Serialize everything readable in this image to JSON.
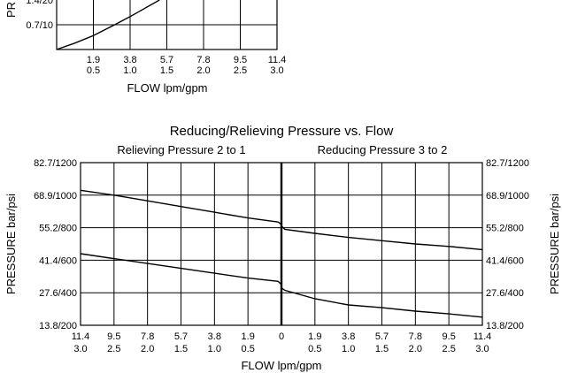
{
  "chart_data": [
    {
      "type": "line",
      "title": "",
      "xlabel": "FLOW lpm/gpm",
      "ylabel_visible": "PR",
      "x_ticks_lpm": [
        "1.9",
        "3.8",
        "5.7",
        "7.8",
        "9.5",
        "11.4"
      ],
      "x_ticks_gpm": [
        "0.5",
        "1.0",
        "1.5",
        "2.0",
        "2.5",
        "3.0"
      ],
      "y_ticks": [
        "0.7/10",
        "1.4/20"
      ],
      "xlim_gpm": [
        0,
        3.0
      ],
      "ylim_psi": [
        0,
        20
      ],
      "grid": true,
      "series": [
        {
          "x": [
            0,
            0.25,
            0.5,
            0.79,
            1.0,
            1.4
          ],
          "y": [
            0,
            2.6,
            5.6,
            10,
            13.3,
            20
          ]
        }
      ]
    },
    {
      "type": "line",
      "title": "Reducing/Relieving Pressure vs. Flow",
      "subtitles": [
        "Relieving Pressure 2 to 1",
        "Reducing Pressure 3 to 2"
      ],
      "xlabel": "FLOW  lpm/gpm",
      "ylabel": "PRESSURE  bar/psi",
      "x_ticks_lpm_left": [
        "11.4",
        "9.5",
        "7.8",
        "5.7",
        "3.8",
        "1.9",
        "0"
      ],
      "x_ticks_gpm_left": [
        "3.0",
        "2.5",
        "2.0",
        "1.5",
        "1.0",
        "0.5"
      ],
      "x_ticks_lpm_right": [
        "0",
        "1.9",
        "3.8",
        "5.7",
        "7.8",
        "9.5",
        "11.4"
      ],
      "x_ticks_gpm_right": [
        "0.5",
        "1.0",
        "1.5",
        "2.0",
        "2.5",
        "3.0"
      ],
      "y_ticks": [
        "82.7/1200",
        "68.9/1000",
        "55.2/800",
        "41.4/600",
        "27.6/400",
        "13.8/200"
      ],
      "ylim_psi": [
        200,
        1200
      ],
      "xlim_gpm_each_side": [
        0,
        3.0
      ],
      "grid": true,
      "relieving_series": [
        {
          "x": [
            3.0,
            2.5,
            2.0,
            1.5,
            1.0,
            0.5,
            0.05,
            0
          ],
          "y": [
            1030,
            1000,
            965,
            930,
            895,
            860,
            835,
            820
          ]
        },
        {
          "x": [
            3.0,
            2.5,
            2.0,
            1.5,
            1.0,
            0.5,
            0.05,
            0
          ],
          "y": [
            640,
            610,
            580,
            550,
            520,
            490,
            470,
            450
          ]
        }
      ],
      "reducing_series": [
        {
          "x": [
            0,
            0.05,
            0.5,
            1.0,
            1.5,
            2.0,
            2.5,
            3.0
          ],
          "y": [
            810,
            790,
            765,
            740,
            720,
            700,
            685,
            665
          ]
        },
        {
          "x": [
            0,
            0.05,
            0.5,
            1.0,
            1.5,
            2.0,
            2.5,
            3.0
          ],
          "y": [
            430,
            415,
            363,
            325,
            308,
            287,
            270,
            250
          ]
        }
      ]
    }
  ]
}
